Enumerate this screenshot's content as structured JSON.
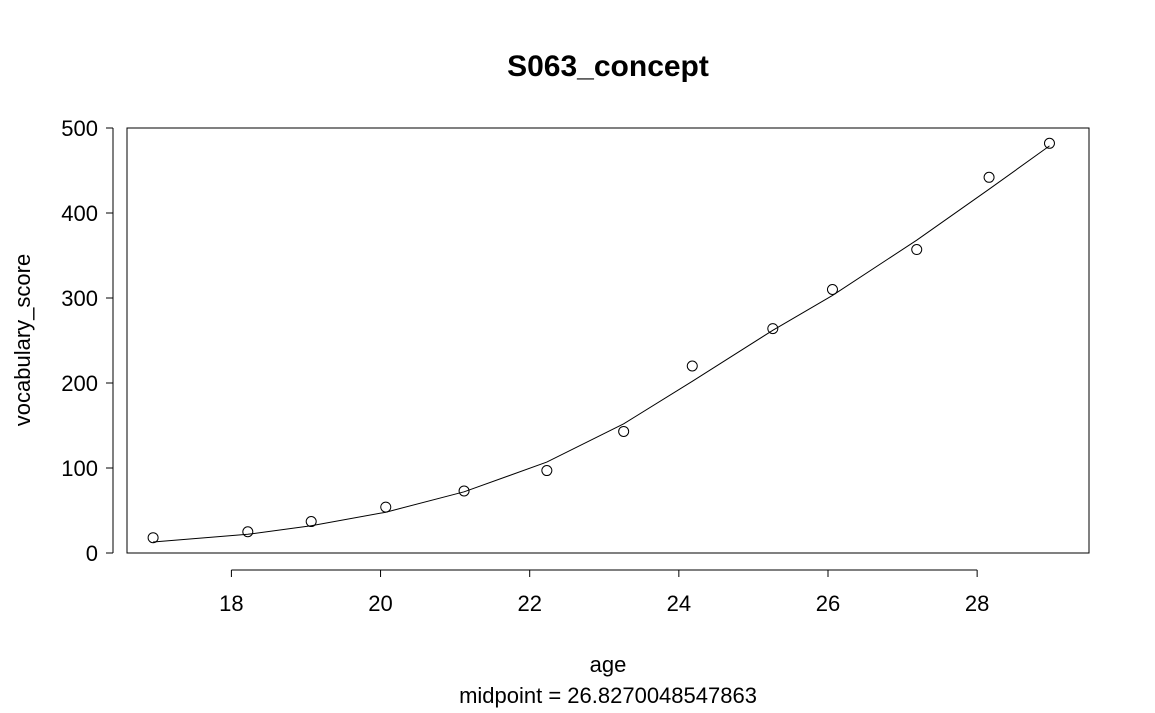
{
  "chart_data": {
    "type": "scatter",
    "title": "S063_concept",
    "xlabel": "age",
    "sublabel": "midpoint = 26.8270048547863",
    "ylabel": "vocabulary_score",
    "xlim": [
      16.6,
      29.5
    ],
    "ylim": [
      0,
      500
    ],
    "xticks": [
      18,
      20,
      22,
      24,
      26,
      28
    ],
    "yticks": [
      0,
      100,
      200,
      300,
      400,
      500
    ],
    "grid": false,
    "points": [
      {
        "x": 16.95,
        "y": 18
      },
      {
        "x": 18.22,
        "y": 25
      },
      {
        "x": 19.07,
        "y": 37
      },
      {
        "x": 20.07,
        "y": 54
      },
      {
        "x": 21.12,
        "y": 73
      },
      {
        "x": 22.23,
        "y": 97
      },
      {
        "x": 23.26,
        "y": 143
      },
      {
        "x": 24.18,
        "y": 220
      },
      {
        "x": 25.26,
        "y": 264
      },
      {
        "x": 26.06,
        "y": 310
      },
      {
        "x": 27.19,
        "y": 357
      },
      {
        "x": 28.16,
        "y": 442
      },
      {
        "x": 28.97,
        "y": 482
      }
    ],
    "fit_line": [
      {
        "x": 16.95,
        "y": 13
      },
      {
        "x": 18.22,
        "y": 22
      },
      {
        "x": 19.07,
        "y": 32
      },
      {
        "x": 20.07,
        "y": 48
      },
      {
        "x": 21.12,
        "y": 72
      },
      {
        "x": 22.23,
        "y": 107
      },
      {
        "x": 23.26,
        "y": 152
      },
      {
        "x": 24.18,
        "y": 202
      },
      {
        "x": 25.26,
        "y": 262
      },
      {
        "x": 26.06,
        "y": 303
      },
      {
        "x": 27.19,
        "y": 368
      },
      {
        "x": 28.16,
        "y": 428
      },
      {
        "x": 28.97,
        "y": 479
      }
    ]
  }
}
